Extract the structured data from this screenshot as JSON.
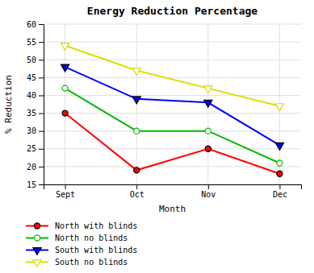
{
  "chart_data": {
    "type": "line",
    "title": "Energy Reduction Percentage",
    "xlabel": "Month",
    "ylabel": "% Reduction",
    "categories": [
      "Sept",
      "Oct",
      "Nov",
      "Dec"
    ],
    "series": [
      {
        "name": "North with blinds",
        "color": "#ff0000",
        "marker": "circle",
        "values": [
          35,
          19,
          25,
          18
        ]
      },
      {
        "name": "North no blinds",
        "color": "#00bb00",
        "marker": "circle-open",
        "values": [
          42,
          30,
          30,
          21
        ]
      },
      {
        "name": "South with blinds",
        "color": "#0000ff",
        "marker": "triangle-down",
        "values": [
          48,
          39,
          38,
          26
        ]
      },
      {
        "name": "South no blinds",
        "color": "#dddd00",
        "marker": "triangle-down-open",
        "values": [
          54,
          47,
          42,
          37
        ]
      }
    ],
    "ylim": [
      15,
      60
    ],
    "yticks": [
      15,
      20,
      25,
      30,
      35,
      40,
      45,
      50,
      55,
      60
    ],
    "grid": true,
    "legend": "lower left"
  }
}
